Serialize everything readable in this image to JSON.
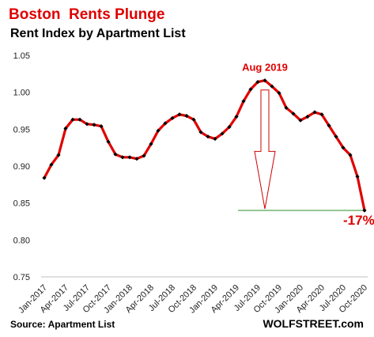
{
  "chart_data": {
    "type": "line",
    "title": "Boston  Rents Plunge",
    "subtitle": "Rent Index by Apartment List",
    "source": "Source: Apartment List",
    "brand": "WOLFSTREET.com",
    "ylim": [
      0.75,
      1.05
    ],
    "yticks": [
      "0.75",
      "0.80",
      "0.85",
      "0.90",
      "0.95",
      "1.00",
      "1.05"
    ],
    "grid": false,
    "x_labels": [
      "Jan-2017",
      "Apr-2017",
      "Jul-2017",
      "Oct-2017",
      "Jan-2018",
      "Apr-2018",
      "Jul-2018",
      "Oct-2018",
      "Jan-2019",
      "Apr-2019",
      "Jul-2019",
      "Oct-2019",
      "Jan-2020",
      "Apr-2020",
      "Jul-2020",
      "Oct-2020"
    ],
    "series": [
      {
        "color": "#e00000",
        "values": [
          0.884,
          0.902,
          0.915,
          0.951,
          0.963,
          0.963,
          0.957,
          0.956,
          0.954,
          0.933,
          0.916,
          0.912,
          0.912,
          0.91,
          0.914,
          0.93,
          0.948,
          0.958,
          0.965,
          0.97,
          0.968,
          0.963,
          0.946,
          0.94,
          0.937,
          0.944,
          0.953,
          0.967,
          0.988,
          1.004,
          1.014,
          1.016,
          1.008,
          0.999,
          0.979,
          0.971,
          0.962,
          0.967,
          0.973,
          0.97,
          0.955,
          0.94,
          0.925,
          0.915,
          0.886,
          0.84
        ]
      }
    ],
    "annotations": {
      "peak_label": "Aug 2019",
      "change_label": "-17%"
    },
    "colors": {
      "title": "#e00000",
      "line": "#e00000",
      "marker": "#000000",
      "arrow": "#d00000",
      "reference_line": "#2e8b2e"
    }
  }
}
